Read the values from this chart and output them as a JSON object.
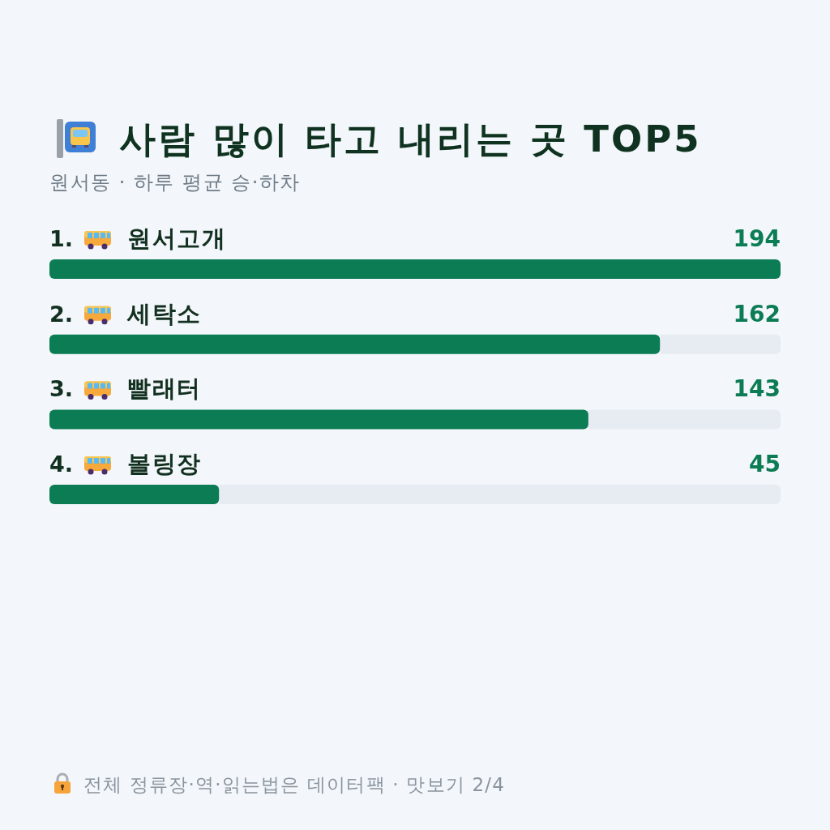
{
  "chart_data": {
    "type": "bar",
    "orientation": "horizontal",
    "title": "사람 많이 타고 내리는 곳 TOP5",
    "subtitle": "원서동 · 하루 평균 승·하차",
    "categories": [
      "1. 원서고개",
      "2. 세탁소",
      "3. 빨래터",
      "4. 볼링장"
    ],
    "values": [
      194,
      162,
      143,
      45
    ],
    "color": "#0b7c53",
    "data_labels": true,
    "annotations": [
      "전체 정류장·역·읽는법은 데이터팩 · 맛보기 2/4"
    ]
  }
}
